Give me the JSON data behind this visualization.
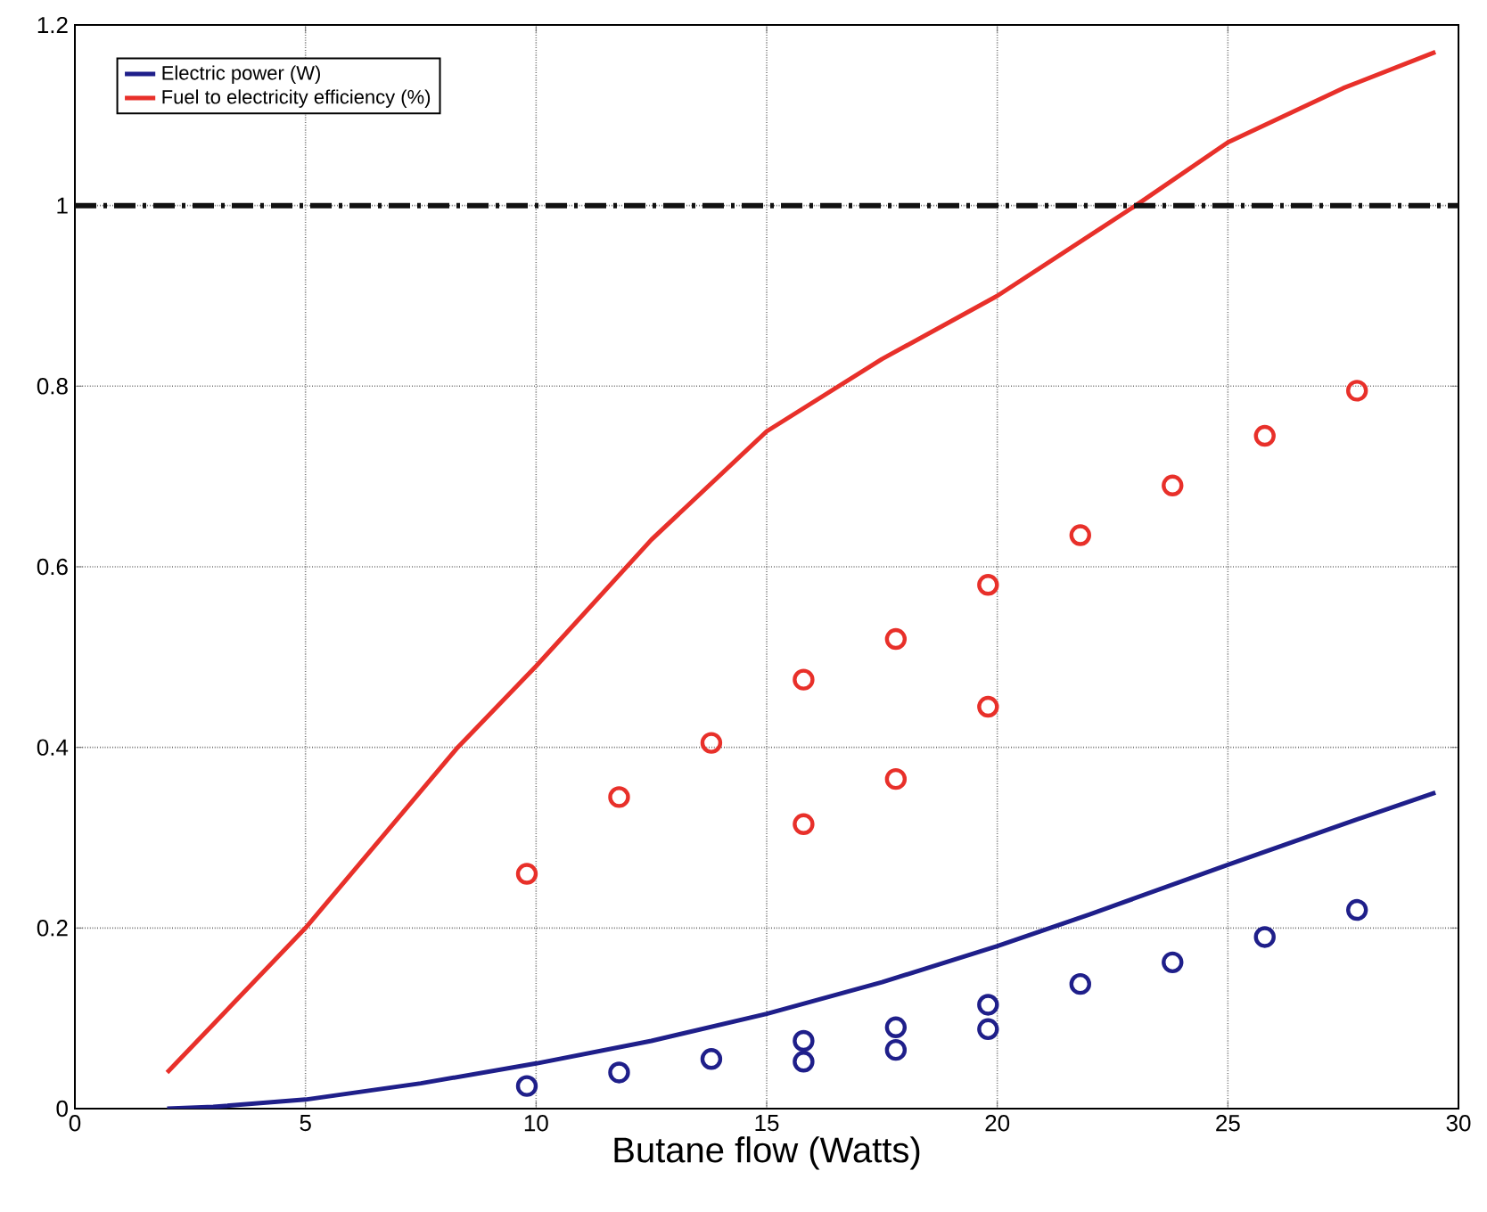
{
  "chart_data": {
    "type": "line",
    "xlabel": "Butane flow (Watts)",
    "xlim": [
      0,
      30
    ],
    "xticks": [
      0,
      5,
      10,
      15,
      20,
      25,
      30
    ],
    "ylim": [
      0,
      1.2
    ],
    "yticks": [
      0,
      0.2,
      0.4,
      0.6,
      0.8,
      1,
      1.2
    ],
    "grid": true,
    "legend": "top left",
    "line_style": "solid",
    "ref_lines": [
      {
        "axis": "y",
        "value": 1,
        "color": "#111111",
        "line_style": "dashed"
      }
    ],
    "series": [
      {
        "name": "Electric power (W)",
        "color": "#1f1f8a",
        "marker": "none",
        "x": [
          2,
          3,
          5,
          7.5,
          10,
          12.5,
          15,
          17.5,
          20,
          22,
          25,
          27.5,
          29.5
        ],
        "values": [
          0,
          0.002,
          0.01,
          0.028,
          0.05,
          0.075,
          0.105,
          0.14,
          0.18,
          0.215,
          0.27,
          0.315,
          0.35
        ]
      },
      {
        "name": "Fuel to electricity efficiency (%)",
        "color": "#e8302a",
        "marker": "none",
        "x": [
          2,
          5,
          8.3,
          10,
          12.5,
          15,
          17.5,
          20,
          23,
          25,
          27.5,
          29.5
        ],
        "values": [
          0.04,
          0.2,
          0.4,
          0.49,
          0.63,
          0.75,
          0.83,
          0.9,
          1.0,
          1.07,
          1.13,
          1.17
        ]
      },
      {
        "type": "scatter",
        "color": "#1f1f8a",
        "marker": "circle",
        "x": [
          9.8,
          11.8,
          13.8,
          15.8,
          15.8,
          17.8,
          17.8,
          19.8,
          19.8,
          21.8,
          23.8,
          25.8,
          27.8
        ],
        "values": [
          0.025,
          0.04,
          0.055,
          0.075,
          0.052,
          0.09,
          0.065,
          0.115,
          0.088,
          0.138,
          0.162,
          0.19,
          0.22
        ]
      },
      {
        "type": "scatter",
        "color": "#e8302a",
        "marker": "circle",
        "x": [
          9.8,
          11.8,
          13.8,
          15.8,
          15.8,
          17.8,
          17.8,
          19.8,
          19.8,
          21.8,
          23.8,
          25.8,
          27.8
        ],
        "values": [
          0.26,
          0.345,
          0.405,
          0.475,
          0.315,
          0.52,
          0.365,
          0.58,
          0.445,
          0.635,
          0.69,
          0.745,
          0.795
        ]
      }
    ]
  }
}
